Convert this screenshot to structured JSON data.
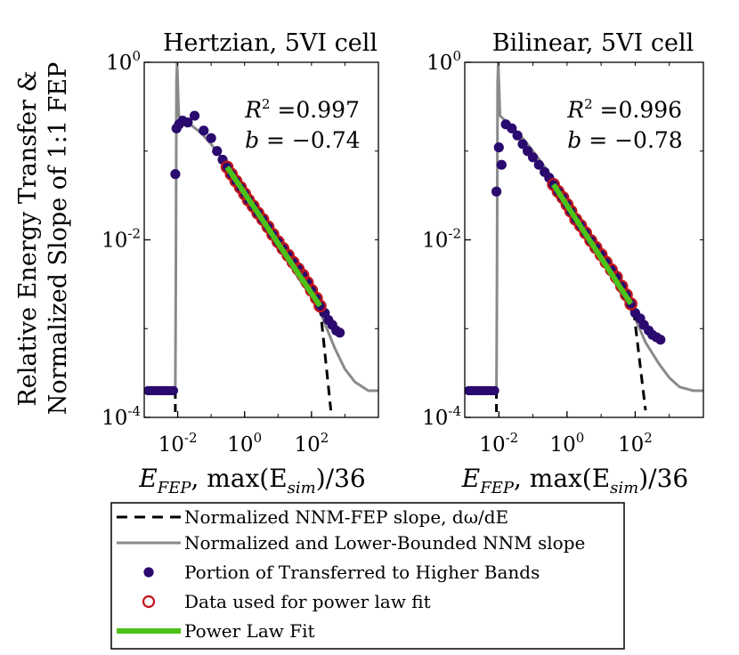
{
  "figure": {
    "ylabel_line1": "Relative Energy Transfer &",
    "ylabel_line2": "Normalized Slope of 1:1 FEP"
  },
  "chart_data": [
    {
      "type": "scatter",
      "title": "Hertzian, 5VI cell",
      "xscale": "log",
      "yscale": "log",
      "xlim": [
        0.001,
        10000
      ],
      "ylim": [
        0.0001,
        1
      ],
      "xlabel": "E_FEP,  max(E_sim)/36",
      "xlabel_parts": [
        "E",
        "FEP",
        ",  max(E",
        "sim",
        ")/36"
      ],
      "xticks": [
        {
          "value": 0.01,
          "label": "10^-2"
        },
        {
          "value": 1,
          "label": "10^0"
        },
        {
          "value": 100,
          "label": "10^2"
        }
      ],
      "yticks": [
        {
          "value": 0.0001,
          "label": "10^-4"
        },
        {
          "value": 0.01,
          "label": "10^-2"
        },
        {
          "value": 1,
          "label": "10^0"
        }
      ],
      "annotation": {
        "r2_label": "R",
        "r2_exp": "2",
        "r2_value": "=0.997",
        "b_label": "b",
        "b_value": "= −0.74"
      },
      "transferred": [
        [
          0.0085,
          0.055
        ],
        [
          0.0092,
          0.18
        ],
        [
          0.011,
          0.2
        ],
        [
          0.014,
          0.22
        ],
        [
          0.02,
          0.21
        ],
        [
          0.032,
          0.25
        ],
        [
          0.06,
          0.17
        ],
        [
          0.1,
          0.14
        ],
        [
          0.15,
          0.1
        ],
        [
          0.22,
          0.08
        ],
        [
          0.3,
          0.066
        ],
        [
          0.4,
          0.055
        ],
        [
          0.55,
          0.046
        ],
        [
          0.75,
          0.039
        ],
        [
          1.0,
          0.033
        ],
        [
          1.3,
          0.028
        ],
        [
          1.8,
          0.024
        ],
        [
          2.5,
          0.02
        ],
        [
          3.5,
          0.017
        ],
        [
          5,
          0.014
        ],
        [
          7,
          0.0115
        ],
        [
          10,
          0.0095
        ],
        [
          14,
          0.008
        ],
        [
          20,
          0.0067
        ],
        [
          28,
          0.0056
        ],
        [
          40,
          0.0047
        ],
        [
          55,
          0.004
        ],
        [
          75,
          0.0033
        ],
        [
          100,
          0.0027
        ],
        [
          140,
          0.0022
        ],
        [
          180,
          0.0018
        ],
        [
          250,
          0.0015
        ],
        [
          320,
          0.00125
        ],
        [
          420,
          0.0011
        ],
        [
          550,
          0.00095
        ],
        [
          700,
          0.0009
        ]
      ],
      "fit_points": [
        [
          0.3,
          0.066
        ],
        [
          0.4,
          0.055
        ],
        [
          0.55,
          0.046
        ],
        [
          0.75,
          0.039
        ],
        [
          1.0,
          0.033
        ],
        [
          1.3,
          0.028
        ],
        [
          1.8,
          0.024
        ],
        [
          2.5,
          0.02
        ],
        [
          3.5,
          0.017
        ],
        [
          5,
          0.014
        ],
        [
          7,
          0.0115
        ],
        [
          10,
          0.0095
        ],
        [
          14,
          0.008
        ],
        [
          20,
          0.0067
        ],
        [
          28,
          0.0056
        ],
        [
          40,
          0.0047
        ],
        [
          55,
          0.004
        ],
        [
          75,
          0.0033
        ],
        [
          100,
          0.0027
        ],
        [
          140,
          0.0022
        ],
        [
          180,
          0.0018
        ]
      ],
      "fit_line": [
        [
          0.3,
          0.066
        ],
        [
          180,
          0.0018
        ]
      ],
      "nnm_fep_dashed": [
        [
          180,
          0.0018
        ],
        [
          380,
          0.00012
        ]
      ],
      "nnm_bounded": [
        [
          0.0012,
          0.0002
        ],
        [
          0.0085,
          0.0002
        ],
        [
          0.0088,
          0.004
        ],
        [
          0.0092,
          0.6
        ],
        [
          0.0096,
          1.0
        ],
        [
          0.01,
          0.6
        ],
        [
          0.0108,
          0.25
        ],
        [
          0.02,
          0.21
        ],
        [
          0.05,
          0.16
        ],
        [
          0.1,
          0.12
        ],
        [
          0.2,
          0.085
        ],
        [
          0.5,
          0.05
        ],
        [
          1,
          0.035
        ],
        [
          2,
          0.023
        ],
        [
          5,
          0.013
        ],
        [
          10,
          0.0085
        ],
        [
          20,
          0.0056
        ],
        [
          50,
          0.0033
        ],
        [
          100,
          0.0023
        ],
        [
          200,
          0.0014
        ],
        [
          500,
          0.0006
        ],
        [
          1000,
          0.00035
        ],
        [
          2000,
          0.00025
        ],
        [
          5000,
          0.0002
        ],
        [
          10000,
          0.0002
        ]
      ],
      "floor_points": [
        [
          0.0013,
          0.0002
        ],
        [
          0.0016,
          0.0002
        ],
        [
          0.002,
          0.0002
        ],
        [
          0.0025,
          0.0002
        ],
        [
          0.0031,
          0.0002
        ],
        [
          0.0039,
          0.0002
        ],
        [
          0.0048,
          0.0002
        ],
        [
          0.006,
          0.0002
        ],
        [
          0.0075,
          0.0002
        ]
      ]
    },
    {
      "type": "scatter",
      "title": "Bilinear, 5VI cell",
      "xscale": "log",
      "yscale": "log",
      "xlim": [
        0.001,
        10000
      ],
      "ylim": [
        0.0001,
        1
      ],
      "xlabel": "E_FEP,  max(E_sim)/36",
      "xlabel_parts": [
        "E",
        "FEP",
        ",  max(E",
        "sim",
        ")/36"
      ],
      "xticks": [
        {
          "value": 0.01,
          "label": "10^-2"
        },
        {
          "value": 1,
          "label": "10^0"
        },
        {
          "value": 100,
          "label": "10^2"
        }
      ],
      "yticks": [
        {
          "value": 0.0001,
          "label": "10^-4"
        },
        {
          "value": 0.01,
          "label": "10^-2"
        },
        {
          "value": 1,
          "label": "10^0"
        }
      ],
      "annotation": {
        "r2_label": "R",
        "r2_exp": "2",
        "r2_value": "=0.996",
        "b_label": "b",
        "b_value": "= −0.78"
      },
      "transferred": [
        [
          0.0085,
          0.035
        ],
        [
          0.01,
          0.11
        ],
        [
          0.012,
          0.07
        ],
        [
          0.016,
          0.2
        ],
        [
          0.024,
          0.18
        ],
        [
          0.035,
          0.15
        ],
        [
          0.05,
          0.12
        ],
        [
          0.07,
          0.1
        ],
        [
          0.1,
          0.085
        ],
        [
          0.15,
          0.07
        ],
        [
          0.22,
          0.058
        ],
        [
          0.3,
          0.05
        ],
        [
          0.4,
          0.042
        ],
        [
          0.55,
          0.035
        ],
        [
          0.75,
          0.03
        ],
        [
          1.0,
          0.025
        ],
        [
          1.3,
          0.021
        ],
        [
          1.8,
          0.017
        ],
        [
          2.5,
          0.0145
        ],
        [
          3.5,
          0.012
        ],
        [
          5,
          0.0098
        ],
        [
          7,
          0.0082
        ],
        [
          10,
          0.0068
        ],
        [
          14,
          0.0056
        ],
        [
          20,
          0.0046
        ],
        [
          28,
          0.0038
        ],
        [
          40,
          0.003
        ],
        [
          55,
          0.0024
        ],
        [
          75,
          0.0019
        ],
        [
          100,
          0.0015
        ],
        [
          140,
          0.0013
        ],
        [
          180,
          0.0011
        ],
        [
          250,
          0.00095
        ],
        [
          320,
          0.00085
        ],
        [
          420,
          0.0008
        ],
        [
          550,
          0.00075
        ]
      ],
      "fit_points": [
        [
          0.4,
          0.042
        ],
        [
          0.55,
          0.035
        ],
        [
          0.75,
          0.03
        ],
        [
          1.0,
          0.025
        ],
        [
          1.3,
          0.021
        ],
        [
          1.8,
          0.017
        ],
        [
          2.5,
          0.0145
        ],
        [
          3.5,
          0.012
        ],
        [
          5,
          0.0098
        ],
        [
          7,
          0.0082
        ],
        [
          10,
          0.0068
        ],
        [
          14,
          0.0056
        ],
        [
          20,
          0.0046
        ],
        [
          28,
          0.0038
        ],
        [
          40,
          0.003
        ],
        [
          55,
          0.0024
        ],
        [
          75,
          0.0019
        ]
      ],
      "fit_line": [
        [
          0.4,
          0.042
        ],
        [
          75,
          0.0019
        ]
      ],
      "nnm_fep_dashed": [
        [
          90,
          0.0016
        ],
        [
          200,
          0.00012
        ]
      ],
      "nnm_bounded": [
        [
          0.0012,
          0.0002
        ],
        [
          0.0085,
          0.0002
        ],
        [
          0.0088,
          0.004
        ],
        [
          0.0092,
          0.6
        ],
        [
          0.0096,
          1.0
        ],
        [
          0.01,
          0.6
        ],
        [
          0.0108,
          0.25
        ],
        [
          0.02,
          0.2
        ],
        [
          0.05,
          0.14
        ],
        [
          0.1,
          0.1
        ],
        [
          0.2,
          0.07
        ],
        [
          0.5,
          0.042
        ],
        [
          1,
          0.028
        ],
        [
          2,
          0.018
        ],
        [
          5,
          0.0095
        ],
        [
          10,
          0.006
        ],
        [
          20,
          0.0038
        ],
        [
          50,
          0.0021
        ],
        [
          100,
          0.0013
        ],
        [
          200,
          0.0007
        ],
        [
          500,
          0.0004
        ],
        [
          1000,
          0.00028
        ],
        [
          2000,
          0.00022
        ],
        [
          5000,
          0.0002
        ],
        [
          10000,
          0.0002
        ]
      ],
      "floor_points": [
        [
          0.0013,
          0.0002
        ],
        [
          0.0016,
          0.0002
        ],
        [
          0.002,
          0.0002
        ],
        [
          0.0025,
          0.0002
        ],
        [
          0.0031,
          0.0002
        ],
        [
          0.0039,
          0.0002
        ],
        [
          0.0048,
          0.0002
        ],
        [
          0.006,
          0.0002
        ],
        [
          0.0075,
          0.0002
        ]
      ]
    }
  ],
  "legend": {
    "items": [
      {
        "key": "dashed",
        "label": "Normalized NNM-FEP slope, dω/dE"
      },
      {
        "key": "gray",
        "label": "Normalized and Lower-Bounded NNM slope"
      },
      {
        "key": "dot",
        "label": "Portion of Transferred to Higher Bands"
      },
      {
        "key": "circle",
        "label": "Data used for power law fit"
      },
      {
        "key": "green",
        "label": "Power Law Fit"
      }
    ]
  },
  "colors": {
    "dot": "#2a0a6e",
    "circle": "#c0141c",
    "gray": "#8a8a8a",
    "green": "#4cc21a",
    "dashed": "#000000"
  }
}
